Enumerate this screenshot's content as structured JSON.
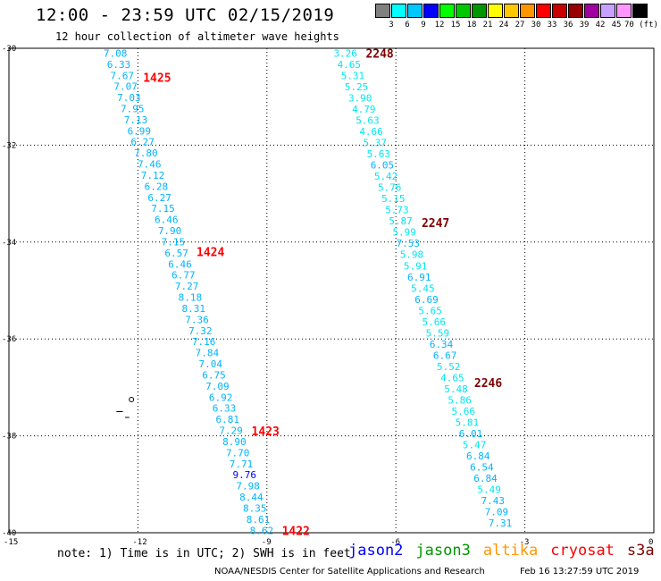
{
  "header": {
    "title": "12:00 - 23:59 UTC 02/15/2019",
    "subtitle": "12 hour collection of altimeter wave heights"
  },
  "colorbar": {
    "labels": [
      "3",
      "6",
      "9",
      "12",
      "15",
      "18",
      "21",
      "24",
      "27",
      "30",
      "33",
      "36",
      "39",
      "42",
      "45",
      "70 (ft)"
    ],
    "colors": [
      "#808080",
      "#00ffff",
      "#00c8ff",
      "#0000ff",
      "#00ff00",
      "#00c800",
      "#009600",
      "#ffff00",
      "#ffc800",
      "#ff9600",
      "#ff0000",
      "#c80000",
      "#960000",
      "#a000a0",
      "#c8a0ff",
      "#ff96ff",
      "#000000"
    ]
  },
  "chart_data": {
    "type": "scatter",
    "xlim": [
      -15,
      0
    ],
    "ylim": [
      -40,
      -30
    ],
    "xticks": [
      "-15",
      "-12",
      "-9",
      "-6",
      "-3",
      "0"
    ],
    "yticks": [
      "-30",
      "-32",
      "-34",
      "-36",
      "-38",
      "-40"
    ],
    "grid": true,
    "tracks": [
      {
        "name": "track-west",
        "lon_start": -12.55,
        "lon_end": -9.15,
        "lat_start": -30.1,
        "lat_end": -39.95,
        "values": [
          "7.08",
          "6.33",
          "7.67",
          "7.07",
          "7.03",
          "7.95",
          "7.13",
          "6.99",
          "6.27",
          "7.80",
          "7.46",
          "7.12",
          "6.28",
          "6.27",
          "7.15",
          "6.46",
          "7.90",
          "7.15",
          "6.57",
          "6.46",
          "6.77",
          "7.27",
          "8.18",
          "8.31",
          "7.36",
          "7.32",
          "7.16",
          "7.84",
          "7.04",
          "6.75",
          "7.09",
          "6.92",
          "6.33",
          "6.81",
          "7.29",
          "8.90",
          "7.70",
          "7.71",
          "9.76",
          "7.98",
          "8.44",
          "8.35",
          "8.61",
          "8.62"
        ],
        "times": [
          {
            "label": "1425",
            "lat": -30.6
          },
          {
            "label": "1424",
            "lat": -34.2
          },
          {
            "label": "1423",
            "lat": -37.9
          },
          {
            "label": "1422",
            "lat": -39.95
          }
        ]
      },
      {
        "name": "track-east",
        "lon_start": -7.2,
        "lon_end": -3.6,
        "lat_start": -30.1,
        "lat_end": -39.8,
        "values": [
          "3.26",
          "4.65",
          "5.31",
          "5.25",
          "3.90",
          "4.79",
          "5.63",
          "4.66",
          "5.37",
          "5.63",
          "6.05",
          "5.42",
          "5.76",
          "5.15",
          "5.73",
          "5.87",
          "5.99",
          "7.53",
          "5.98",
          "5.91",
          "6.91",
          "5.45",
          "6.69",
          "5.65",
          "5.66",
          "5.59",
          "6.34",
          "6.67",
          "5.52",
          "4.65",
          "5.48",
          "5.86",
          "5.66",
          "5.81",
          "6.01",
          "5.47",
          "6.84",
          "6.54",
          "6.84",
          "5.49",
          "7.43",
          "7.09",
          "7.31"
        ],
        "times": [
          {
            "label": "2248",
            "lat": -30.1
          },
          {
            "label": "2247",
            "lat": -33.6
          },
          {
            "label": "2246",
            "lat": -36.9
          }
        ]
      }
    ]
  },
  "note": "note: 1) Time is in UTC; 2) SWH is in feet",
  "legend": [
    {
      "name": "jason2",
      "color": "#0000ff"
    },
    {
      "name": "jason3",
      "color": "#009600"
    },
    {
      "name": "altika",
      "color": "#ff9600"
    },
    {
      "name": "cryosat",
      "color": "#ff0000"
    },
    {
      "name": "s3a",
      "color": "#800000"
    }
  ],
  "footer": {
    "org": "NOAA/NESDIS Center for Satellite Applications and Research",
    "date": "Feb 16 13:27:59 UTC 2019"
  }
}
